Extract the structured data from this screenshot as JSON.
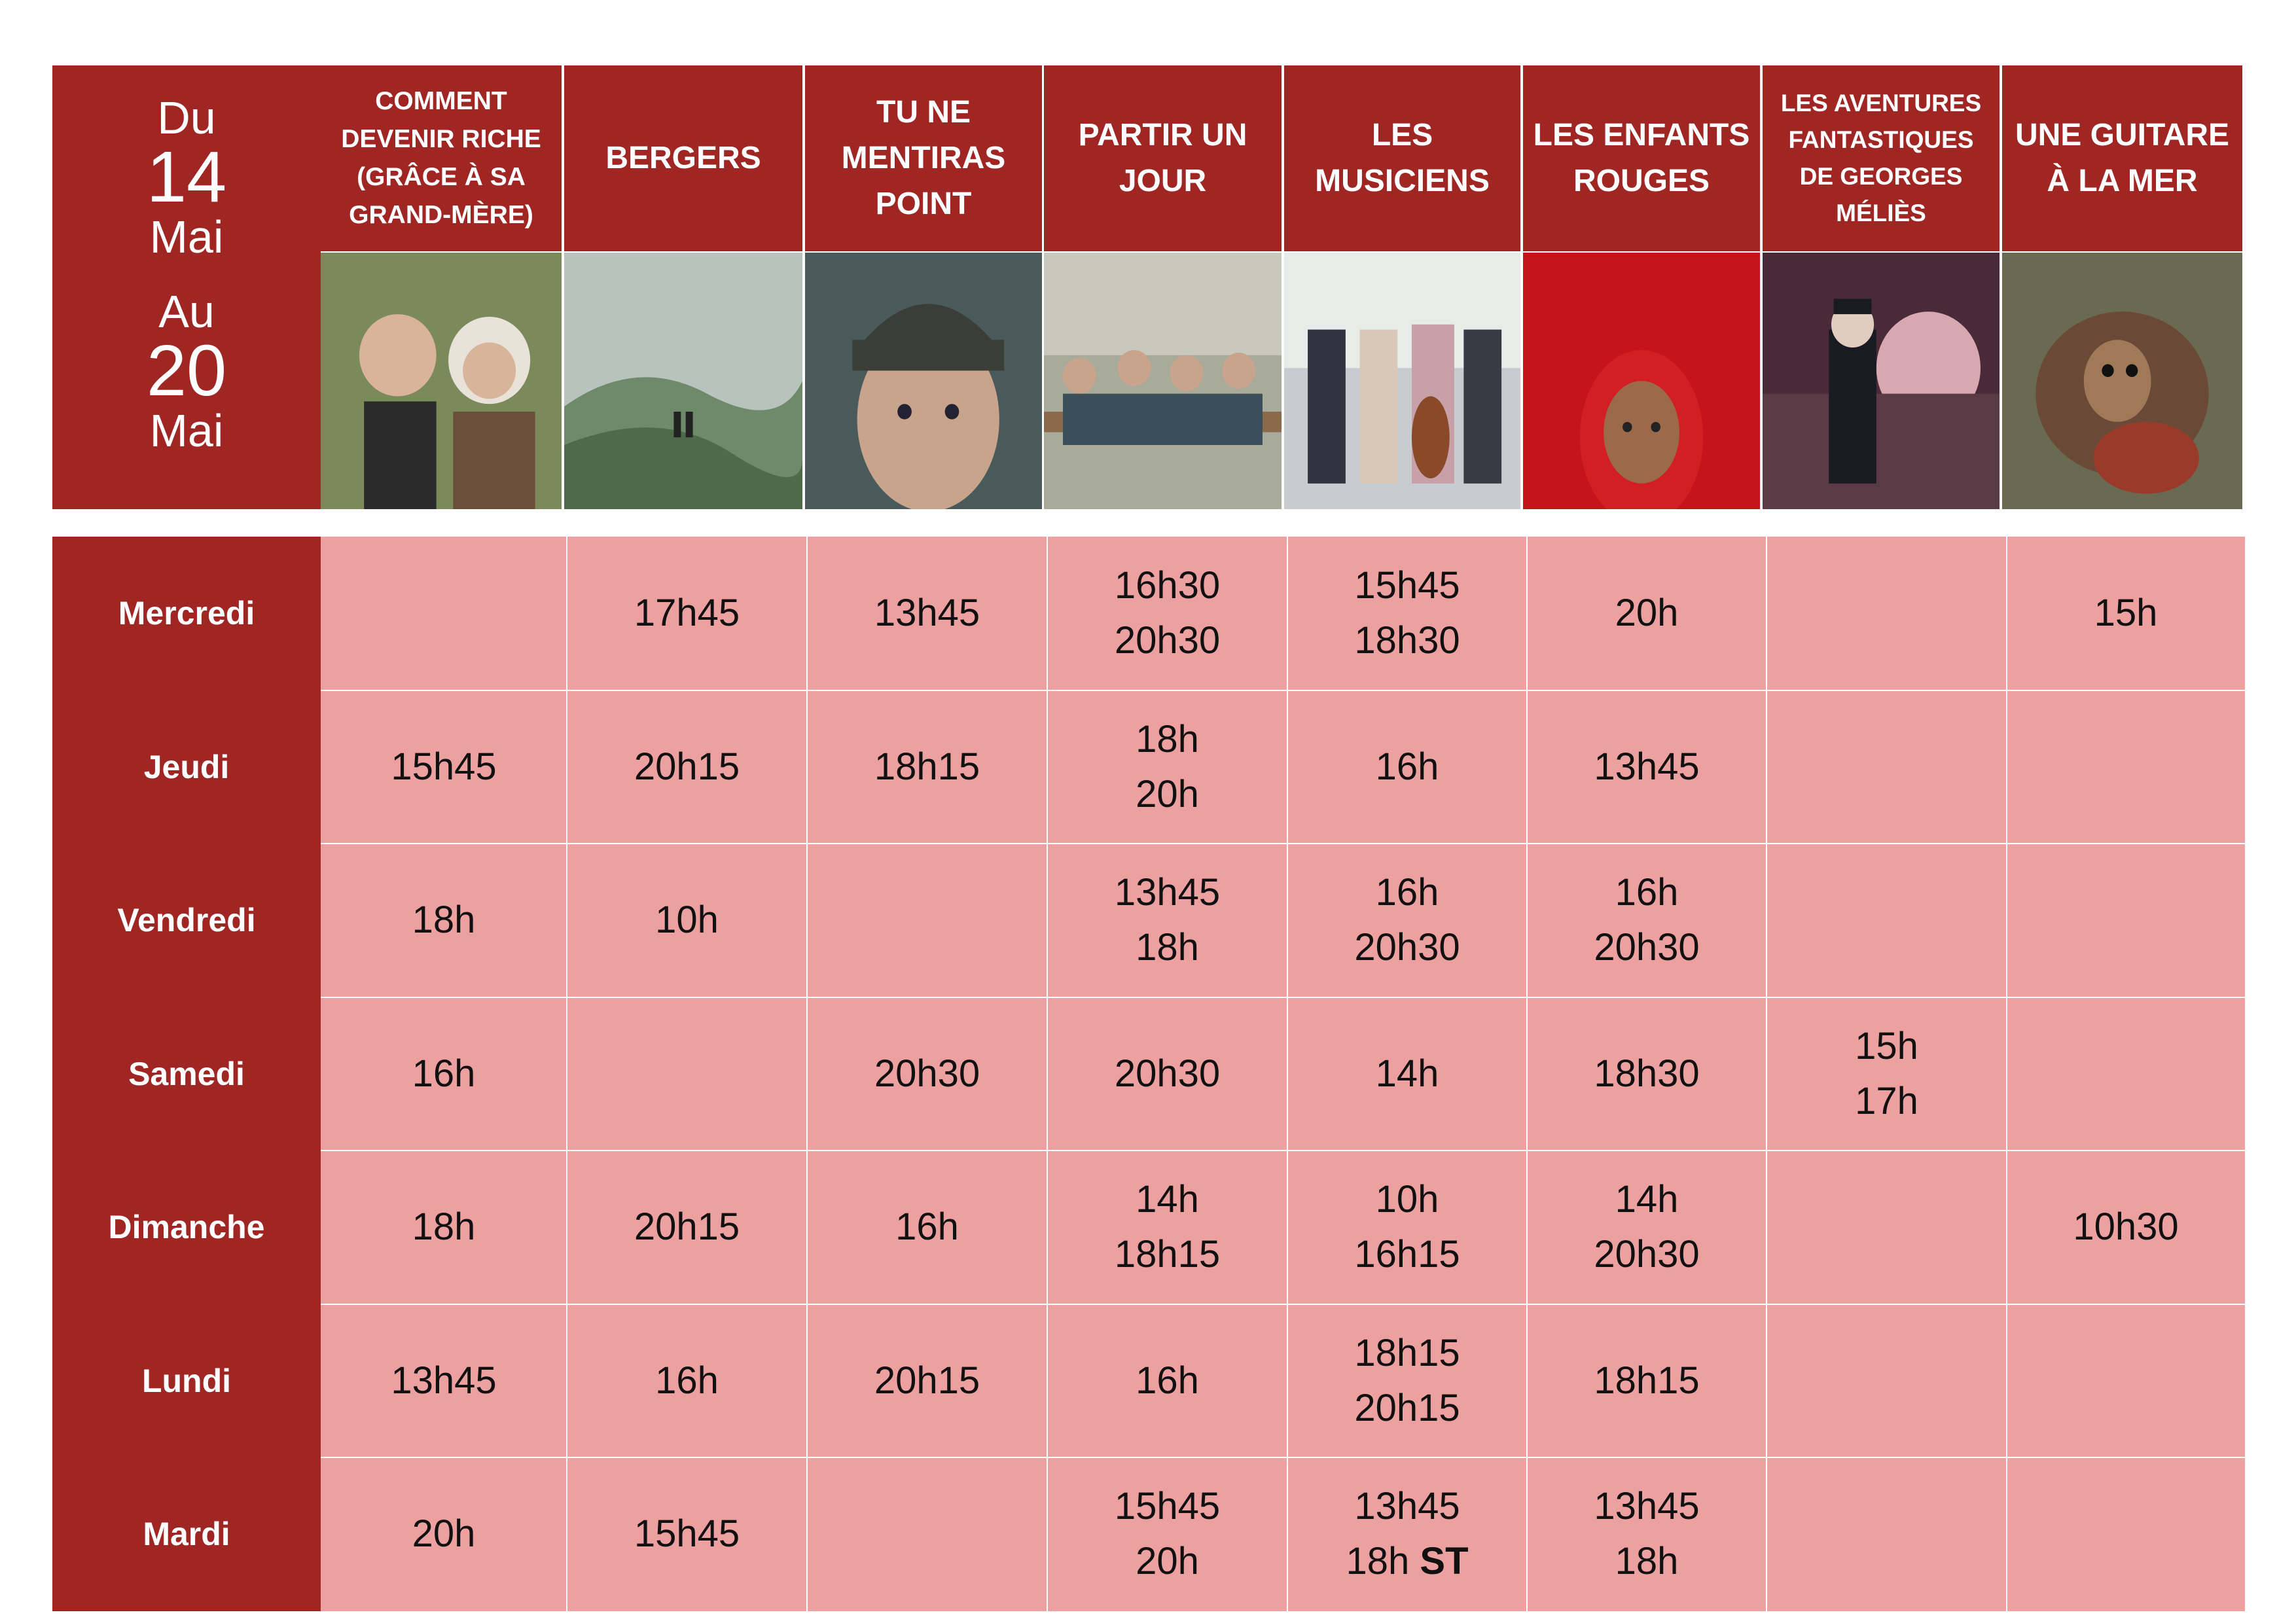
{
  "header": {
    "date_range": {
      "from_word": "Du",
      "from_day": "14",
      "from_month": "Mai",
      "to_word": "Au",
      "to_day": "20",
      "to_month": "Mai"
    },
    "films": [
      {
        "title": "COMMENT DEVENIR RICHE (GRÂCE À SA GRAND-MÈRE)",
        "size": "small"
      },
      {
        "title": "BERGERS",
        "size": "big"
      },
      {
        "title": "TU NE MENTIRAS POINT",
        "size": "big"
      },
      {
        "title": "PARTIR UN JOUR",
        "size": "big"
      },
      {
        "title": "LES MUSICIENS",
        "size": "big"
      },
      {
        "title": "LES ENFANTS ROUGES",
        "size": "big"
      },
      {
        "title": "LES AVENTURES FANTASTIQUES DE GEORGES MÉLIÈS",
        "size": "tiny"
      },
      {
        "title": "UNE GUITARE À LA MER",
        "size": "big"
      }
    ]
  },
  "schedule": {
    "days": [
      "Mercredi",
      "Jeudi",
      "Vendredi",
      "Samedi",
      "Dimanche",
      "Lundi",
      "Mardi"
    ],
    "rows": [
      [
        [],
        [
          "17h45"
        ],
        [
          "13h45"
        ],
        [
          "16h30",
          "20h30"
        ],
        [
          "15h45",
          "18h30"
        ],
        [
          "20h"
        ],
        [],
        [
          "15h"
        ]
      ],
      [
        [
          "15h45"
        ],
        [
          "20h15"
        ],
        [
          "18h15"
        ],
        [
          "18h",
          "20h"
        ],
        [
          "16h"
        ],
        [
          "13h45"
        ],
        [],
        []
      ],
      [
        [
          "18h"
        ],
        [
          "10h"
        ],
        [],
        [
          "13h45",
          "18h"
        ],
        [
          "16h",
          "20h30"
        ],
        [
          "16h",
          "20h30"
        ],
        [],
        []
      ],
      [
        [
          "16h"
        ],
        [],
        [
          "20h30"
        ],
        [
          "20h30"
        ],
        [
          "14h"
        ],
        [
          "18h30"
        ],
        [
          "15h",
          "17h"
        ],
        []
      ],
      [
        [
          "18h"
        ],
        [
          "20h15"
        ],
        [
          "16h"
        ],
        [
          "14h",
          "18h15"
        ],
        [
          "10h",
          "16h15"
        ],
        [
          "14h",
          "20h30"
        ],
        [],
        [
          "10h30"
        ]
      ],
      [
        [
          "13h45"
        ],
        [
          "16h"
        ],
        [
          "20h15"
        ],
        [
          "16h"
        ],
        [
          "18h15",
          "20h15"
        ],
        [
          "18h15"
        ],
        [],
        []
      ],
      [
        [
          "20h"
        ],
        [
          "15h45"
        ],
        [],
        [
          "15h45",
          "20h"
        ],
        [
          "13h45",
          "18h|ST"
        ],
        [
          "13h45",
          "18h"
        ],
        [],
        []
      ]
    ]
  },
  "colors": {
    "dark_red": "#a02624",
    "pink": "#eca1a0"
  }
}
